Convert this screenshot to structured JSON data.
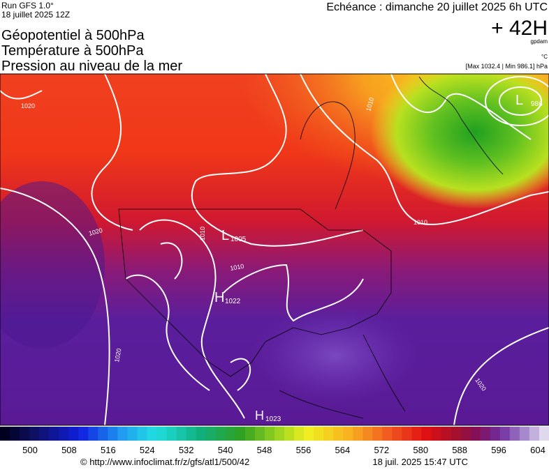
{
  "header": {
    "run": "Run GFS 1.0°",
    "run_date": "18 juillet 2025 12Z",
    "valid": "Echéance : dimanche 20 juillet 2025 6h UTC",
    "lead": "+ 42H",
    "unit_geo": "gpdam",
    "unit_temp": "°C",
    "extremes": "[Max 1032.4 | Min 986.1] hPa",
    "titles": [
      "Géopotentiel à 500hPa",
      "Température à 500hPa",
      "Pression au niveau de la mer"
    ]
  },
  "map": {
    "centers": [
      {
        "letter": "L",
        "value": "986"
      },
      {
        "letter": "L",
        "value": "1005"
      },
      {
        "letter": "H",
        "value": "1022"
      },
      {
        "letter": "H",
        "value": "1023"
      }
    ],
    "isobar_labels": [
      "1020",
      "1020",
      "1020",
      "1010",
      "1010",
      "1010",
      "1020",
      "1010"
    ]
  },
  "colorbar": {
    "labels": [
      "500",
      "508",
      "516",
      "524",
      "532",
      "540",
      "548",
      "556",
      "564",
      "572",
      "580",
      "588",
      "596",
      "604"
    ]
  },
  "footer": {
    "url": "© http://www.infoclimat.fr/z/gfs/atl1/500/42",
    "generated": "18 juil. 2025 15:47 UTC"
  }
}
